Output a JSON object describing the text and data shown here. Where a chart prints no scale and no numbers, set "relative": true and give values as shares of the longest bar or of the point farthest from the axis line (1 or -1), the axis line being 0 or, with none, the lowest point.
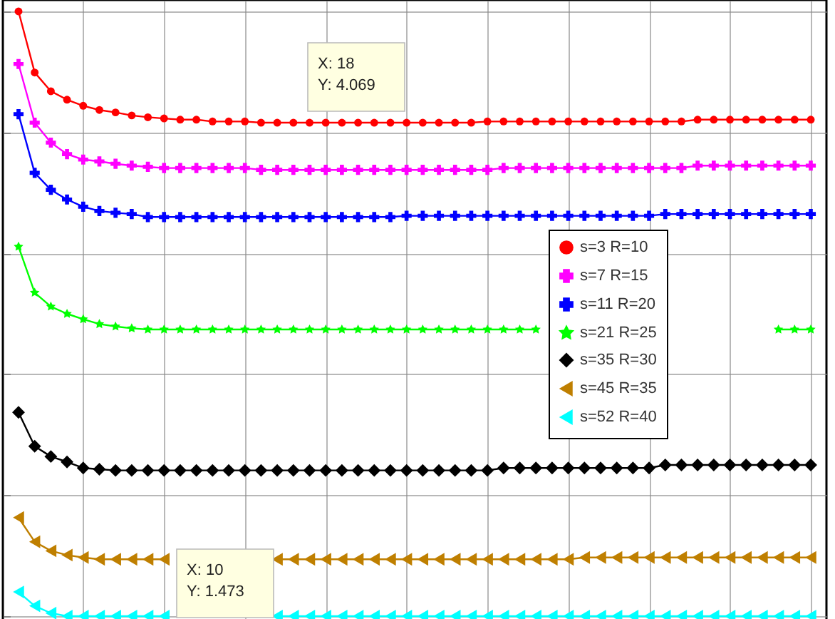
{
  "chart_data": {
    "type": "line",
    "relative": true,
    "grid": true,
    "legend": "right",
    "categories": [
      null,
      null,
      null,
      null,
      null,
      null,
      null,
      null,
      null,
      null,
      null,
      null,
      null,
      null,
      null,
      null,
      null,
      null,
      null,
      null,
      null,
      null,
      null,
      null,
      null,
      null,
      null,
      null,
      null,
      null,
      null,
      null,
      null,
      null,
      null,
      null,
      null,
      null,
      null,
      null,
      null,
      null,
      null,
      null,
      null,
      null,
      null,
      null,
      null,
      null
    ],
    "series": [
      {
        "name": "s=3 R=10",
        "color": "#ff0000",
        "marker": "circle",
        "values": [
          1.0,
          0.899,
          0.868,
          0.854,
          0.844,
          0.837,
          0.833,
          0.828,
          0.825,
          0.823,
          0.821,
          0.821,
          0.818,
          0.818,
          0.818,
          0.816,
          0.816,
          0.816,
          0.816,
          0.816,
          0.816,
          0.816,
          0.816,
          0.816,
          0.816,
          0.816,
          0.816,
          0.816,
          0.816,
          0.818,
          0.818,
          0.818,
          0.818,
          0.818,
          0.818,
          0.818,
          0.818,
          0.818,
          0.818,
          0.818,
          0.818,
          0.818,
          0.821,
          0.821,
          0.821,
          0.821,
          0.821,
          0.821,
          0.821,
          0.821
        ]
      },
      {
        "name": "s=7 R=15",
        "color": "#ff00ff",
        "marker": "cross",
        "values": [
          0.913,
          0.816,
          0.783,
          0.764,
          0.755,
          0.752,
          0.748,
          0.745,
          0.743,
          0.741,
          0.741,
          0.741,
          0.741,
          0.741,
          0.741,
          0.738,
          0.738,
          0.738,
          0.738,
          0.738,
          0.738,
          0.738,
          0.738,
          0.738,
          0.738,
          0.738,
          0.738,
          0.738,
          0.738,
          0.738,
          0.741,
          0.741,
          0.741,
          0.741,
          0.741,
          0.741,
          0.741,
          0.741,
          0.741,
          0.741,
          0.741,
          0.741,
          0.745,
          0.745,
          0.745,
          0.745,
          0.745,
          0.745,
          0.745,
          0.745
        ]
      },
      {
        "name": "s=11 R=20",
        "color": "#0000ff",
        "marker": "cross",
        "values": [
          0.83,
          0.733,
          0.705,
          0.689,
          0.677,
          0.67,
          0.667,
          0.665,
          0.66,
          0.66,
          0.66,
          0.66,
          0.66,
          0.66,
          0.66,
          0.66,
          0.66,
          0.66,
          0.66,
          0.66,
          0.66,
          0.66,
          0.66,
          0.66,
          0.662,
          0.662,
          0.662,
          0.662,
          0.662,
          0.662,
          0.662,
          0.662,
          0.662,
          0.662,
          0.662,
          0.662,
          0.662,
          0.662,
          0.662,
          0.662,
          0.665,
          0.665,
          0.665,
          0.665,
          0.665,
          0.665,
          0.665,
          0.665,
          0.665,
          0.665
        ]
      },
      {
        "name": "s=21 R=25",
        "color": "#00ff00",
        "marker": "star",
        "values": [
          0.611,
          0.535,
          0.512,
          0.5,
          0.491,
          0.483,
          0.479,
          0.476,
          0.474,
          0.474,
          0.474,
          0.474,
          0.474,
          0.474,
          0.474,
          0.474,
          0.474,
          0.474,
          0.474,
          0.474,
          0.474,
          0.474,
          0.474,
          0.474,
          0.474,
          0.474,
          0.474,
          0.474,
          0.474,
          0.474,
          0.474,
          0.474,
          0.474,
          null,
          null,
          null,
          null,
          null,
          null,
          null,
          null,
          null,
          null,
          null,
          null,
          null,
          null,
          0.474,
          0.474,
          0.474
        ]
      },
      {
        "name": "s=35 R=30",
        "color": "#000000",
        "marker": "diamond",
        "values": [
          0.337,
          0.281,
          0.264,
          0.255,
          0.245,
          0.243,
          0.241,
          0.241,
          0.241,
          0.241,
          0.241,
          0.241,
          0.241,
          0.241,
          0.241,
          0.241,
          0.241,
          0.241,
          0.241,
          0.241,
          0.241,
          0.241,
          0.241,
          0.241,
          0.241,
          0.241,
          0.241,
          0.241,
          0.241,
          0.241,
          0.245,
          0.245,
          0.245,
          0.245,
          0.245,
          0.245,
          0.245,
          0.245,
          0.245,
          0.245,
          0.25,
          0.25,
          0.25,
          0.25,
          0.25,
          0.25,
          0.25,
          0.25,
          0.25,
          0.25
        ]
      },
      {
        "name": "s=45 R=35",
        "color": "#bf7f00",
        "marker": "triangle",
        "values": [
          0.163,
          0.123,
          0.108,
          0.101,
          0.097,
          0.094,
          0.094,
          0.094,
          0.094,
          0.094,
          null,
          null,
          null,
          null,
          null,
          null,
          0.094,
          0.094,
          0.094,
          0.094,
          0.094,
          0.094,
          0.094,
          0.094,
          0.094,
          0.094,
          0.094,
          0.094,
          0.094,
          0.094,
          0.094,
          0.094,
          0.094,
          0.094,
          0.094,
          0.097,
          0.097,
          0.097,
          0.097,
          0.097,
          0.097,
          0.097,
          0.097,
          0.097,
          0.097,
          0.097,
          0.097,
          0.097,
          0.097,
          0.097
        ]
      },
      {
        "name": "s=52 R=40",
        "color": "#00ffff",
        "marker": "triangle",
        "values": [
          0.04,
          0.017,
          0.005,
          0,
          0,
          0,
          0,
          0,
          0,
          0,
          null,
          null,
          null,
          null,
          null,
          null,
          0,
          0,
          0,
          0,
          0,
          0,
          0,
          0,
          0,
          0,
          0,
          0,
          0,
          0,
          0,
          0,
          0,
          0,
          0,
          0,
          0,
          0,
          0,
          0,
          0,
          0,
          0,
          0,
          0,
          0,
          0,
          0,
          0,
          0
        ]
      }
    ],
    "annotations": [
      "X: 18\nY: 4.069",
      "X: 10\nY: 1.473"
    ]
  }
}
